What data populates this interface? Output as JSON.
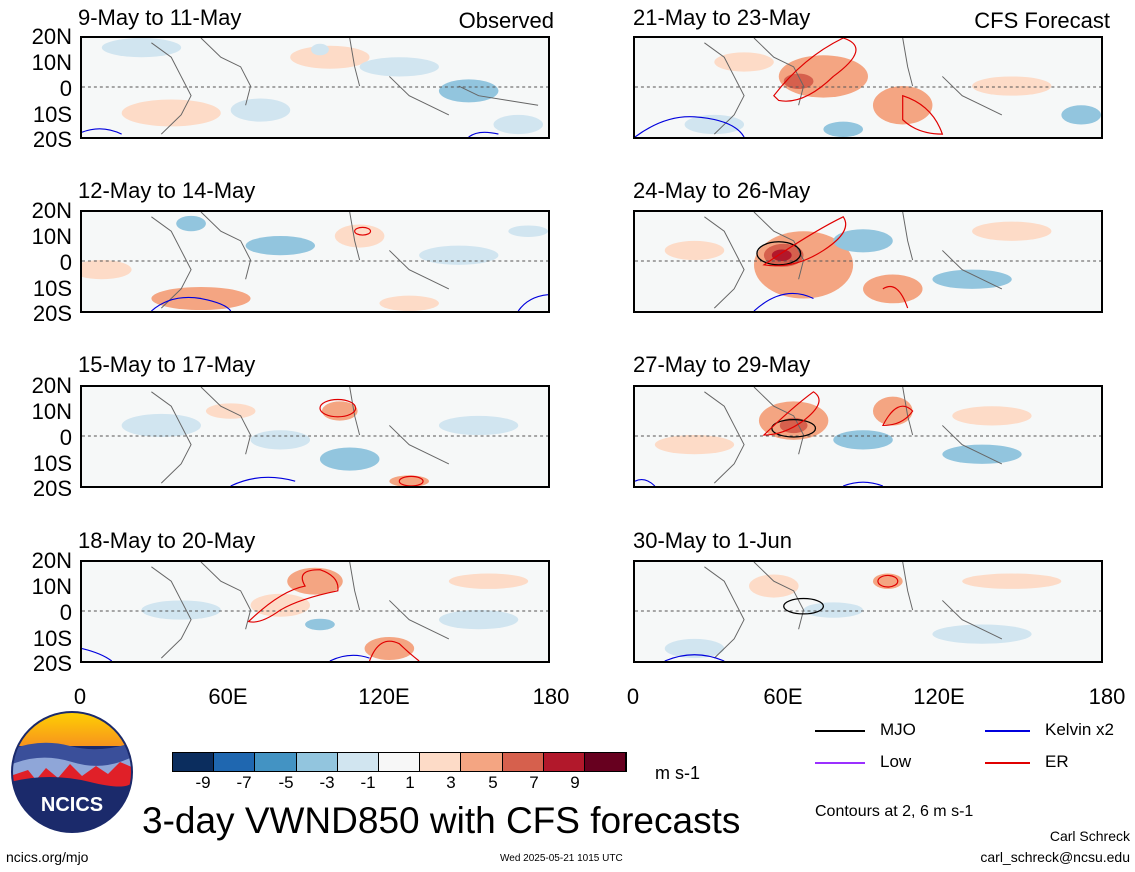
{
  "panels": [
    {
      "title": "9-May to 11-May",
      "corner": "Observed"
    },
    {
      "title": "12-May to 14-May",
      "corner": ""
    },
    {
      "title": "15-May to 17-May",
      "corner": ""
    },
    {
      "title": "18-May to 20-May",
      "corner": ""
    },
    {
      "title": "21-May to 23-May",
      "corner": "CFS Forecast"
    },
    {
      "title": "24-May to 26-May",
      "corner": ""
    },
    {
      "title": "27-May to 29-May",
      "corner": ""
    },
    {
      "title": "30-May to 1-Jun",
      "corner": ""
    }
  ],
  "lat_ticks": [
    "20N",
    "10N",
    "0",
    "10S",
    "20S"
  ],
  "lon_ticks": [
    "0",
    "60E",
    "120E",
    "180"
  ],
  "colorbar": {
    "labels": [
      "-9",
      "-7",
      "-5",
      "-3",
      "-1",
      "1",
      "3",
      "5",
      "7",
      "9"
    ],
    "colors": [
      "#0b2d5e",
      "#1f67b0",
      "#4393c3",
      "#92c5de",
      "#d1e5f0",
      "#f7f7f7",
      "#fddbc7",
      "#f4a582",
      "#d6604d",
      "#b2182b",
      "#67001f"
    ],
    "units": "m s-1"
  },
  "legend": {
    "mjo": "MJO",
    "kelvin": "Kelvin x2",
    "low": "Low",
    "er": "ER",
    "colors": {
      "mjo": "#000000",
      "kelvin": "#0000dd",
      "low": "#9b30ff",
      "er": "#e00000"
    }
  },
  "contours_note": "Contours at 2, 6 m s-1",
  "main_title": "3-day VWND850 with CFS forecasts",
  "logo_text": "NCICS",
  "footer": {
    "left": "ncics.org/mjo",
    "timestamp": "Wed 2025-05-21 1015 UTC",
    "author": "Carl Schreck",
    "email": "carl_schreck@ncsu.edu"
  }
}
